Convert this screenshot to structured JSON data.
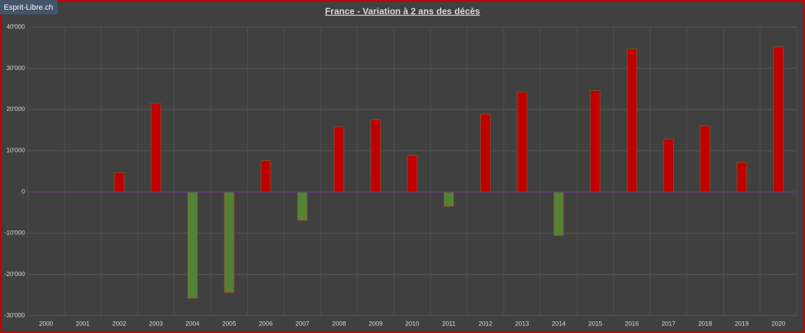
{
  "chart_data": {
    "type": "bar",
    "title": "France - Variation à 2 ans des décès",
    "watermark": "Esprit-Libre.ch",
    "categories": [
      "2000",
      "2001",
      "2002",
      "2003",
      "2004",
      "2005",
      "2006",
      "2007",
      "2008",
      "2009",
      "2010",
      "2011",
      "2012",
      "2013",
      "2014",
      "2015",
      "2016",
      "2017",
      "2018",
      "2019",
      "2020"
    ],
    "values": [
      null,
      null,
      4700,
      21500,
      -25800,
      -24400,
      7600,
      -6900,
      15800,
      17500,
      8800,
      -3500,
      18900,
      24200,
      -10600,
      24600,
      34700,
      12800,
      16000,
      7200,
      35200
    ],
    "positive_color": "#c00000",
    "negative_color": "#548235",
    "ylim": [
      -30000,
      40000
    ],
    "yticks": [
      {
        "value": -30000,
        "label": "-30'000"
      },
      {
        "value": -20000,
        "label": "-20'000"
      },
      {
        "value": -10000,
        "label": "-10'000"
      },
      0,
      {
        "value": 10000,
        "label": "10'000"
      },
      {
        "value": 20000,
        "label": "20'000"
      },
      {
        "value": 30000,
        "label": "30'000"
      },
      {
        "value": 40000,
        "label": "40'000"
      }
    ],
    "grid": true
  }
}
